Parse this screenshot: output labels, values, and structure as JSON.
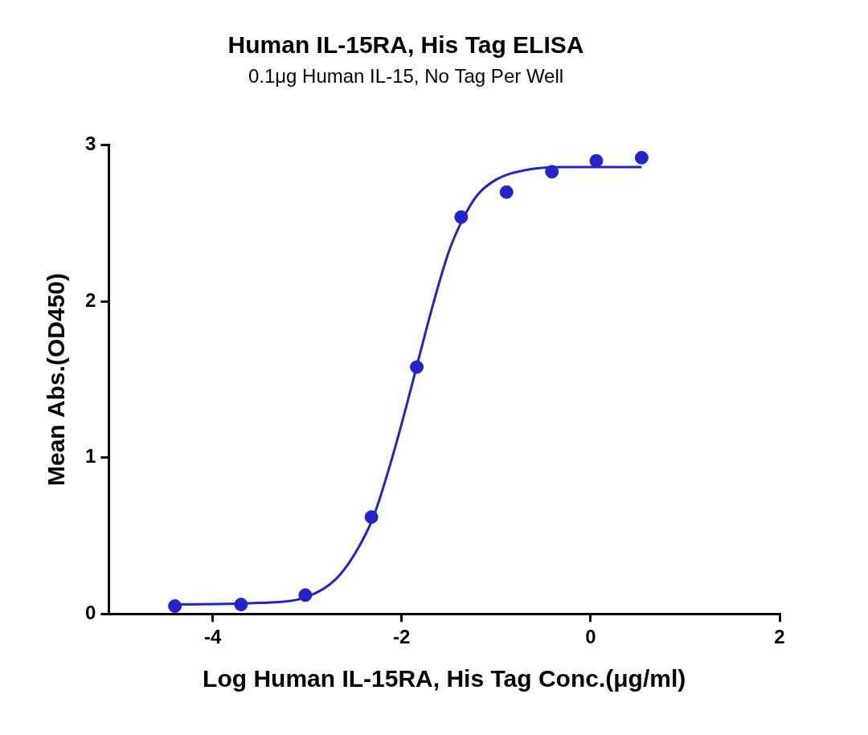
{
  "chart_data": {
    "type": "scatter",
    "title": "Human IL-15RA, His Tag ELISA",
    "subtitle": "0.1μg Human IL-15, No Tag Per Well",
    "x_label": "Log Human IL-15RA, His Tag Conc.(μg/ml)",
    "y_label": "Mean Abs.(OD450)",
    "color": "#2424c8",
    "grid": false,
    "xlim": [
      -5.1,
      2
    ],
    "xticks": [
      -4,
      -2,
      0,
      2
    ],
    "ylim": [
      0,
      3
    ],
    "yticks": [
      0,
      1,
      2,
      3
    ],
    "series": [
      {
        "type": "scatter",
        "marker": "circle",
        "x": [
          -4.4,
          -3.7,
          -3.02,
          -2.32,
          -1.84,
          -1.37,
          -0.89,
          -0.41,
          0.06,
          0.54
        ],
        "values": [
          0.05,
          0.06,
          0.12,
          0.62,
          1.58,
          2.54,
          2.7,
          2.83,
          2.9,
          2.92
        ]
      },
      {
        "type": "line",
        "line_style": "solid",
        "x": [
          -4.4,
          -3.5,
          -3.0,
          -2.7,
          -2.5,
          -2.3,
          -2.1,
          -1.95,
          -1.8,
          -1.65,
          -1.5,
          -1.35,
          -1.2,
          -1.0,
          -0.7,
          -0.3,
          0.1,
          0.54
        ],
        "values": [
          0.06,
          0.07,
          0.11,
          0.22,
          0.38,
          0.62,
          1.0,
          1.33,
          1.68,
          2.02,
          2.32,
          2.53,
          2.68,
          2.78,
          2.84,
          2.86,
          2.86,
          2.86
        ]
      }
    ]
  }
}
